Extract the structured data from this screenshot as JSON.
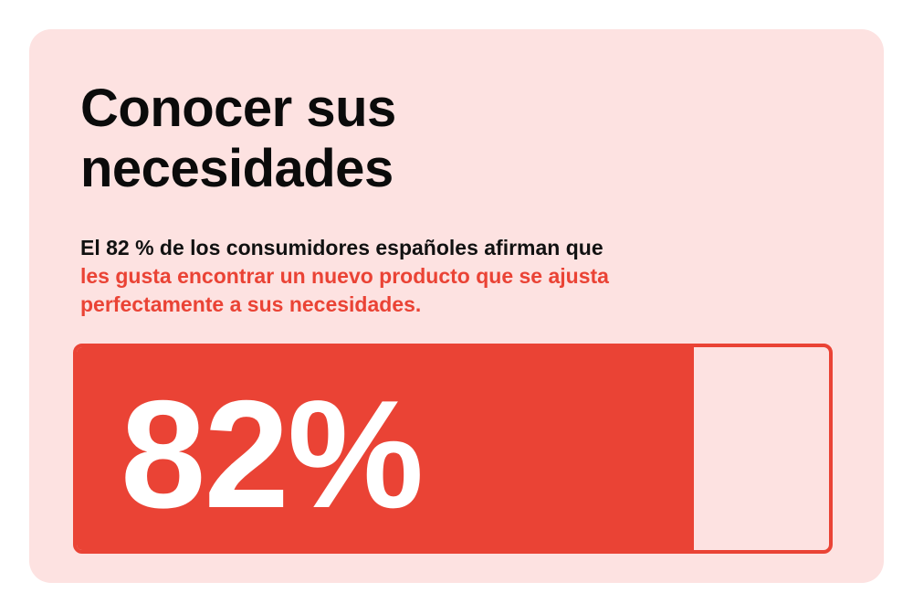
{
  "card": {
    "title": "Conocer sus necesidades",
    "statement_lead": "El 82 % de los consumidores españoles afirman que",
    "statement_highlight": "les gusta encontrar un nuevo producto que se ajusta perfectamente a sus necesidades."
  },
  "progress": {
    "label": "82%",
    "value_fraction": 0.82
  },
  "colors": {
    "card_background": "#fde2e1",
    "accent": "#ea4335",
    "text": "#0b0b0b",
    "label_text": "#ffffff"
  }
}
